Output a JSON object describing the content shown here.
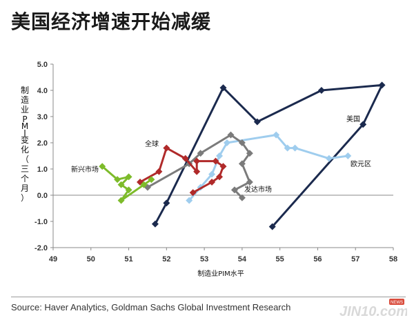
{
  "header": {
    "title": "美国经济增速开始减缓"
  },
  "footer": {
    "source": "Source: Haver Analytics, Goldman Sachs Global Investment Research",
    "watermark": "JIN10.com",
    "watermark_badge": "NEWS"
  },
  "chart_data": {
    "type": "line",
    "title": "美国经济增速开始减缓",
    "xlabel": "制造业PIM水平",
    "ylabel": "制造业PMI变化（三个月）",
    "xlim": [
      49,
      58
    ],
    "ylim": [
      -2,
      5
    ],
    "x_ticks": [
      "49",
      "50",
      "51",
      "52",
      "53",
      "54",
      "55",
      "56",
      "57",
      "58"
    ],
    "y_ticks": [
      "-2.0",
      "-1.0",
      "0.0",
      "1.0",
      "2.0",
      "3.0",
      "4.0",
      "5.0"
    ],
    "grid": false,
    "series": [
      {
        "name": "美国",
        "color": "#1b2a4e",
        "marker": "diamond",
        "x": [
          51.7,
          52.0,
          53.5,
          54.4,
          56.1,
          57.7,
          57.2,
          54.8
        ],
        "y": [
          -1.1,
          -0.3,
          4.1,
          2.8,
          4.0,
          4.2,
          2.7,
          -1.2
        ]
      },
      {
        "name": "欧元区",
        "color": "#9fcdee",
        "marker": "diamond",
        "x": [
          52.6,
          52.9,
          53.2,
          53.4,
          53.6,
          54.9,
          55.2,
          55.4,
          56.3,
          56.8
        ],
        "y": [
          -0.2,
          0.3,
          0.8,
          1.5,
          2.0,
          2.3,
          1.8,
          1.8,
          1.4,
          1.5
        ]
      },
      {
        "name": "发达市场",
        "color": "#7b7b7b",
        "marker": "diamond",
        "x": [
          51.5,
          52.6,
          52.9,
          53.7,
          54.0,
          54.2,
          54.0,
          54.2,
          53.8,
          54.0
        ],
        "y": [
          0.3,
          1.2,
          1.6,
          2.3,
          2.0,
          1.6,
          1.2,
          0.5,
          0.2,
          -0.1
        ]
      },
      {
        "name": "全球",
        "color": "#b02a2a",
        "marker": "diamond",
        "x": [
          51.3,
          51.8,
          52.0,
          52.5,
          52.8,
          52.8,
          53.3,
          53.5,
          53.4,
          53.2,
          52.7
        ],
        "y": [
          0.5,
          0.9,
          1.8,
          1.4,
          0.9,
          1.3,
          1.3,
          1.1,
          0.7,
          0.5,
          0.1
        ]
      },
      {
        "name": "新兴市场",
        "color": "#7dbb2a",
        "marker": "diamond",
        "x": [
          50.3,
          50.7,
          51.0,
          50.8,
          51.0,
          50.8,
          51.4,
          51.6
        ],
        "y": [
          1.1,
          0.6,
          0.7,
          0.4,
          0.2,
          -0.2,
          0.4,
          0.6
        ]
      }
    ],
    "annotations": [
      "美国",
      "欧元区",
      "发达市场",
      "全球",
      "新兴市场"
    ]
  }
}
